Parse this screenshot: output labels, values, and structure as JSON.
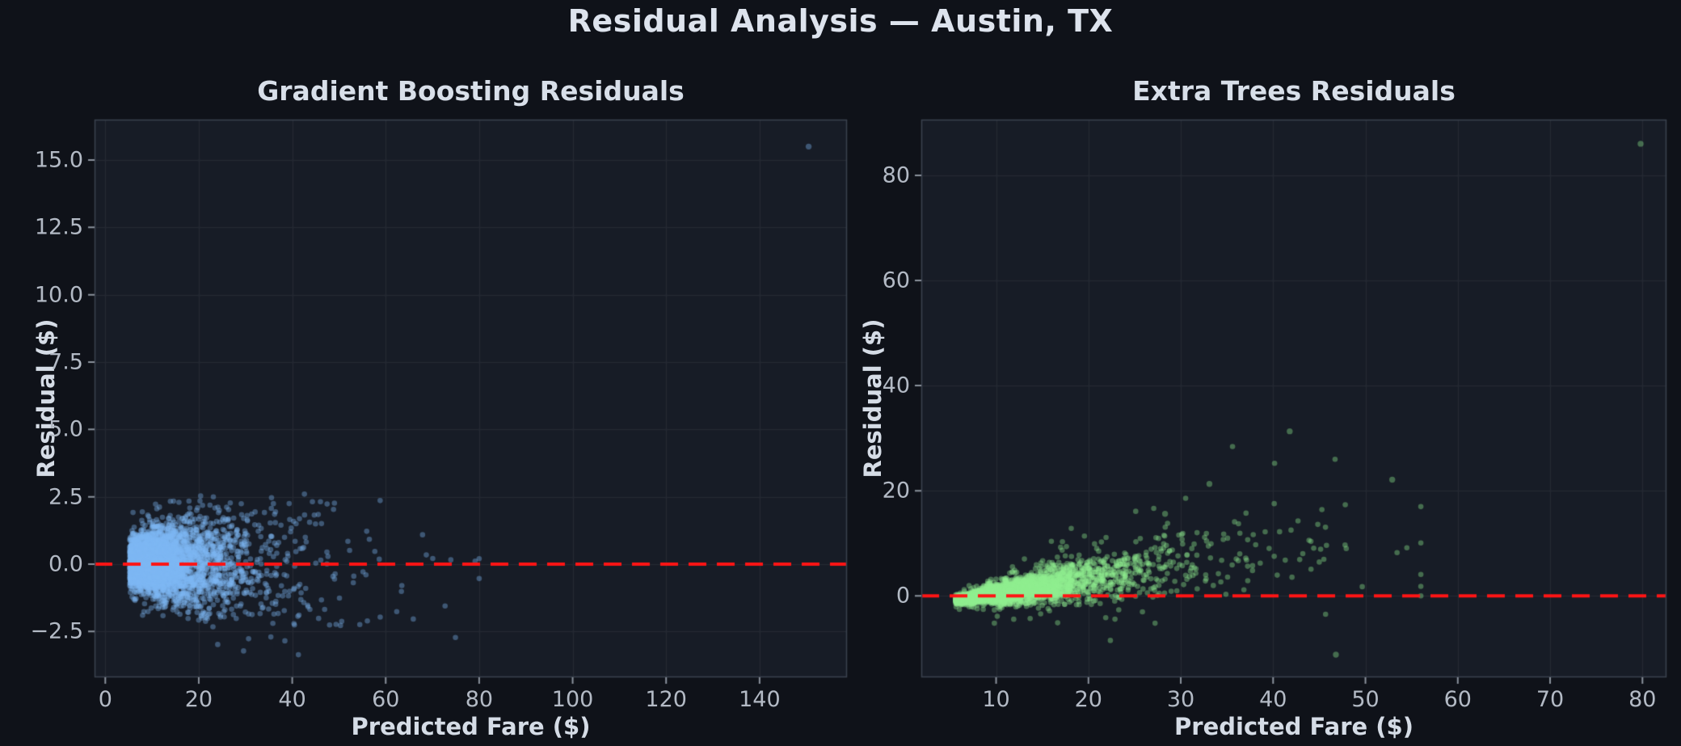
{
  "figure": {
    "title": "Residual Analysis — Austin, TX",
    "background_color": "#0f1219",
    "plot_background_color": "#171c26",
    "grid_color": "rgba(255,255,255,0.06)",
    "spine_color": "#3a414d",
    "tick_mark_color": "#8b929d",
    "title_color": "#dde3ed",
    "label_color": "#d5dce6",
    "tick_label_color": "#b3bac5"
  },
  "chart_data": [
    {
      "type": "scatter",
      "title": "Gradient Boosting Residuals",
      "xlabel": "Predicted Fare ($)",
      "ylabel": "Residual ($)",
      "xlim": [
        -2.3,
        158.7
      ],
      "ylim": [
        -4.2,
        16.5
      ],
      "xticks": {
        "values": [
          0,
          20,
          40,
          60,
          80,
          100,
          120,
          140
        ],
        "labels": [
          "0",
          "20",
          "40",
          "60",
          "80",
          "100",
          "120",
          "140"
        ]
      },
      "yticks": {
        "values": [
          -2.5,
          0.0,
          2.5,
          5.0,
          7.5,
          10.0,
          12.5,
          15.0
        ],
        "labels": [
          "−2.5",
          "0.0",
          "2.5",
          "5.0",
          "7.5",
          "10.0",
          "12.5",
          "15.0"
        ]
      },
      "grid": true,
      "zero_line": {
        "value": 0,
        "color": "#ff1414",
        "dash": [
          22,
          13
        ],
        "width": 4
      },
      "point_color": "#7db9f5",
      "point_alpha": 0.38,
      "point_radius": 3.3,
      "n_points": 4200,
      "seed": 42,
      "cloud": {
        "x_mixture": [
          {
            "weight": 0.6,
            "type": "halfnormal",
            "base": 5.2,
            "sigma": 5.8
          },
          {
            "weight": 0.31,
            "type": "halfnormal",
            "base": 8.5,
            "sigma": 9.5
          },
          {
            "weight": 0.09,
            "type": "exponential",
            "base": 20,
            "scale": 13,
            "max": 80
          }
        ],
        "y_mean_intercept": 0.05,
        "y_mean_slope": 0.0,
        "sd_base": 0.26,
        "sd_slope": 0.03,
        "sd_x0": 0,
        "sd_xcap": 45,
        "sd_min": 0,
        "wide_frac": 0.05,
        "wide_mult": 1.6,
        "clip_min": -3.5,
        "clip_min_wide": -3.5,
        "clip_max": 2.6
      },
      "outliers": [
        [
          150.5,
          15.5
        ]
      ],
      "distribution_note": "Dense light-blue fan of ~4000 residuals hugging 0 between $5–35 predicted fare, widening to ±2.5 out to $60, sparse dark points to $80 dipping to −3.3, one extreme outlier near ($150, +15.5); dashed red zero line."
    },
    {
      "type": "scatter",
      "title": "Extra Trees Residuals",
      "xlabel": "Predicted Fare ($)",
      "ylabel": "Residual ($)",
      "xlim": [
        1.9,
        82.6
      ],
      "ylim": [
        -15.5,
        90.6
      ],
      "xticks": {
        "values": [
          10,
          20,
          30,
          40,
          50,
          60,
          70,
          80
        ],
        "labels": [
          "10",
          "20",
          "30",
          "40",
          "50",
          "60",
          "70",
          "80"
        ]
      },
      "yticks": {
        "values": [
          0,
          20,
          40,
          60,
          80
        ],
        "labels": [
          "0",
          "20",
          "40",
          "60",
          "80"
        ]
      },
      "grid": true,
      "zero_line": {
        "value": 0,
        "color": "#ff1414",
        "dash": [
          22,
          13
        ],
        "width": 4
      },
      "point_color": "#90ee90",
      "point_alpha": 0.38,
      "point_radius": 3.3,
      "n_points": 4200,
      "seed": 1337,
      "cloud": {
        "x_mixture": [
          {
            "weight": 0.64,
            "type": "halfnormal",
            "base": 5.6,
            "sigma": 4.4
          },
          {
            "weight": 0.27,
            "type": "halfnormal",
            "base": 9.0,
            "sigma": 7.5
          },
          {
            "weight": 0.09,
            "type": "exponential",
            "base": 16,
            "scale": 11,
            "max": 56
          }
        ],
        "y_mean_intercept": -2.38,
        "y_mean_slope": 0.28,
        "sd_base": 0,
        "sd_slope": 0.13,
        "sd_x0": 4,
        "sd_xcap": 999,
        "sd_min": 0.35,
        "wide_frac": 0.07,
        "wide_mult": 2.2,
        "clip_min": -3.4,
        "clip_min_wide": -8.5,
        "clip_max": 33
      },
      "outliers": [
        [
          79.8,
          86.0
        ],
        [
          41.8,
          31.3
        ],
        [
          52.9,
          22.1
        ],
        [
          46.8,
          -11.2
        ],
        [
          33.1,
          21.3
        ],
        [
          28.3,
          15.6
        ]
      ],
      "distribution_note": "Dense light-green comet starting as a tight hook just below 0 at $5–8, rising with positive slope (residual ≈ 0.28·fare − 2.4) and widening spread to $55; sparse dark-green points reach +31 at $42 and +22 at $53, a low point near ($47, −11), and one extreme outlier near ($80, +86); dashed red zero line."
    }
  ]
}
